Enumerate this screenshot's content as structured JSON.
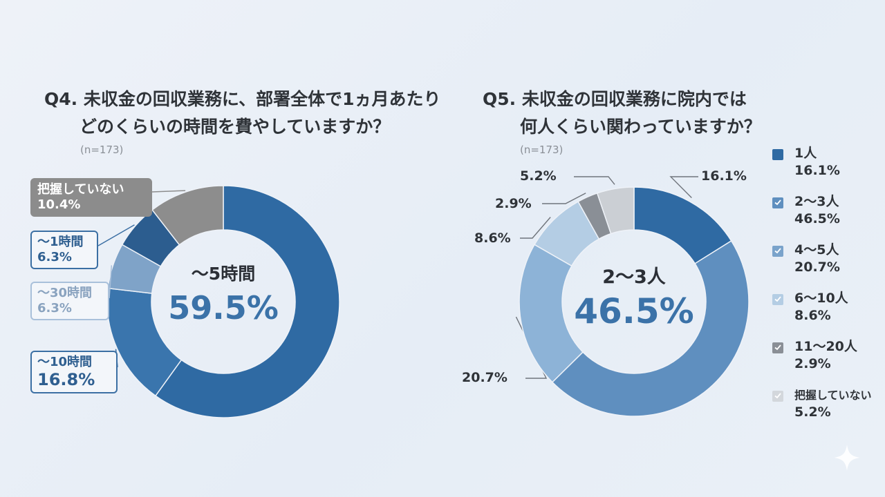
{
  "chart_data": [
    {
      "type": "pie",
      "title_lines": [
        "Q4. 未収金の回収業務に、部署全体で1ヵ月あたり",
        "どのくらいの時間を費やしていますか？"
      ],
      "sample": "(n=173)",
      "categories": [
        "〜5時間",
        "〜10時間",
        "〜30時間",
        "〜1時間",
        "把握していない"
      ],
      "values": [
        59.5,
        16.8,
        6.3,
        6.3,
        10.4
      ],
      "value_labels": [
        "59.5%",
        "16.8%",
        "6.3%",
        "6.3%",
        "10.4%"
      ],
      "colors": [
        "#2f6aa3",
        "#3a75ad",
        "#7fa3c8",
        "#2c5d8f",
        "#8d8d8d"
      ],
      "center_label": "〜5時間",
      "center_value": "59.5%"
    },
    {
      "type": "pie",
      "title_lines": [
        "Q5. 未収金の回収業務に院内では",
        "何人くらい関わっていますか？"
      ],
      "sample": "(n=173)",
      "categories": [
        "1人",
        "2〜3人",
        "4〜5人",
        "6〜10人",
        "11〜20人",
        "把握していない"
      ],
      "values": [
        16.1,
        46.5,
        20.7,
        8.6,
        2.9,
        5.2
      ],
      "value_labels": [
        "16.1%",
        "46.5%",
        "20.7%",
        "8.6%",
        "2.9%",
        "5.2%"
      ],
      "colors": [
        "#2f6aa3",
        "#5f8fbf",
        "#8db3d7",
        "#b4cde4",
        "#8a8f96",
        "#cbcfd4"
      ],
      "center_label": "2〜3人",
      "center_value": "46.5%",
      "legend_position": "right"
    }
  ]
}
